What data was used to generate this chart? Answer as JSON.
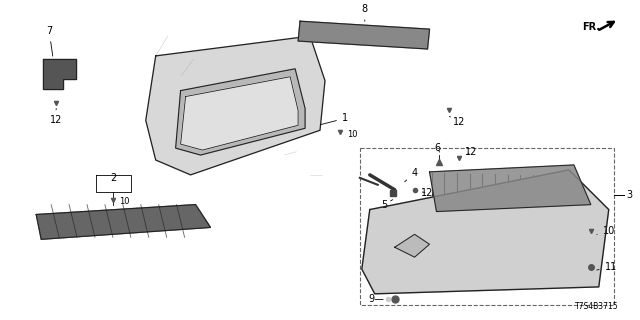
{
  "bg_color": "#ffffff",
  "diagram_code": "T7S4B3715",
  "dgray": "#222222",
  "mgray": "#555555",
  "lgray": "#aaaaaa",
  "parts_color": "#cccccc"
}
